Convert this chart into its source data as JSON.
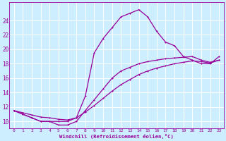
{
  "xlabel": "Windchill (Refroidissement éolien,°C)",
  "bg_color": "#cceeff",
  "line_color": "#990099",
  "grid_color": "#ffffff",
  "xlim": [
    -0.5,
    23.5
  ],
  "ylim": [
    9.0,
    26.5
  ],
  "xticks": [
    0,
    1,
    2,
    3,
    4,
    5,
    6,
    7,
    8,
    9,
    10,
    11,
    12,
    13,
    14,
    15,
    16,
    17,
    18,
    19,
    20,
    21,
    22,
    23
  ],
  "yticks": [
    10,
    12,
    14,
    16,
    18,
    20,
    22,
    24
  ],
  "curve1_x": [
    0,
    1,
    2,
    3,
    4,
    5,
    6,
    7,
    8,
    9,
    10,
    11,
    12,
    13,
    14,
    15,
    16,
    17,
    18,
    19,
    20,
    21,
    22,
    23
  ],
  "curve1_y": [
    11.5,
    11.0,
    10.5,
    10.0,
    10.0,
    10.0,
    10.0,
    10.5,
    13.5,
    19.5,
    21.5,
    23.0,
    24.5,
    25.0,
    25.5,
    24.5,
    22.5,
    21.0,
    20.5,
    19.0,
    18.5,
    18.0,
    18.0,
    19.0
  ],
  "curve2_x": [
    0,
    1,
    2,
    3,
    4,
    5,
    6,
    7,
    8,
    9,
    10,
    11,
    12,
    13,
    14,
    15,
    16,
    17,
    18,
    19,
    20,
    21,
    22,
    23
  ],
  "curve2_y": [
    11.5,
    11.0,
    10.5,
    10.0,
    10.0,
    9.5,
    9.5,
    10.0,
    11.5,
    13.0,
    14.5,
    16.0,
    17.0,
    17.5,
    18.0,
    18.3,
    18.5,
    18.7,
    18.8,
    18.9,
    19.0,
    18.5,
    18.2,
    18.5
  ],
  "curve3_x": [
    0,
    1,
    2,
    3,
    4,
    5,
    6,
    7,
    8,
    9,
    10,
    11,
    12,
    13,
    14,
    15,
    16,
    17,
    18,
    19,
    20,
    21,
    22,
    23
  ],
  "curve3_y": [
    11.5,
    11.2,
    10.9,
    10.6,
    10.5,
    10.3,
    10.2,
    10.5,
    11.3,
    12.2,
    13.2,
    14.2,
    15.1,
    15.8,
    16.5,
    17.0,
    17.4,
    17.7,
    18.0,
    18.2,
    18.4,
    18.3,
    18.1,
    18.5
  ]
}
